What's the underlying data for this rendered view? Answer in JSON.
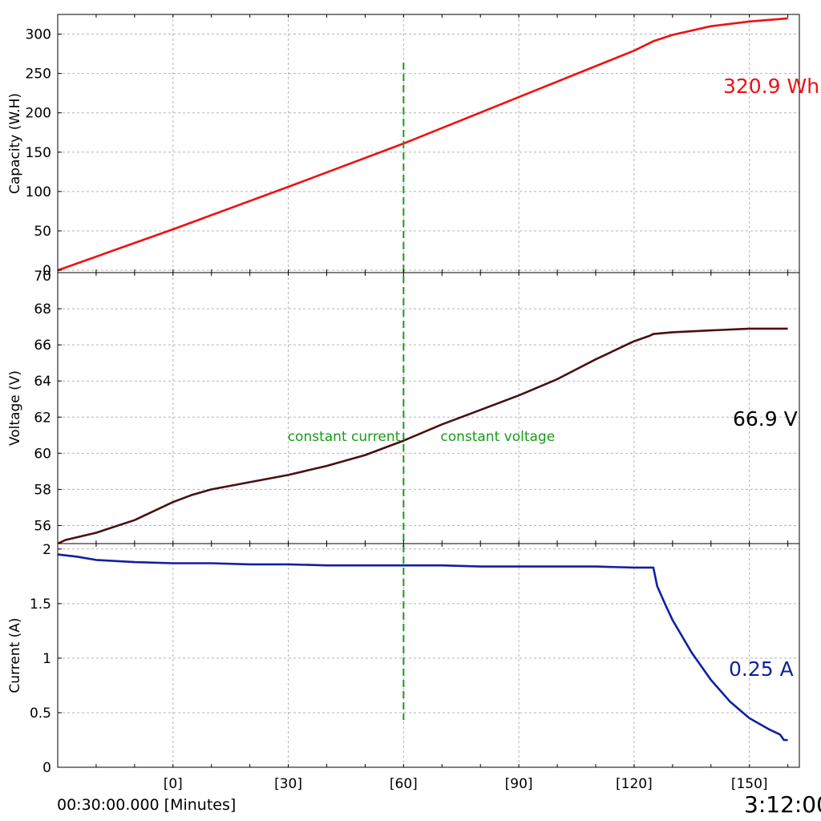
{
  "footer": {
    "time_offset": "00:30:00.000 [Minutes]",
    "clock": "3:12:00"
  },
  "chart_data": [
    {
      "id": "capacity",
      "type": "line",
      "ylabel": "Capacity (W.H)",
      "ylim": [
        -3,
        325
      ],
      "yticks": [
        0,
        50,
        100,
        150,
        200,
        250,
        300
      ],
      "readout": "320.9 Wh",
      "color": "#ee1111",
      "series": [
        {
          "x": [
            -30,
            0,
            30,
            60,
            90,
            120,
            125,
            130,
            140,
            150,
            160
          ],
          "values": [
            0,
            52,
            106,
            161,
            220,
            279,
            291,
            299,
            310,
            316,
            320
          ]
        }
      ]
    },
    {
      "id": "voltage",
      "type": "line",
      "ylabel": "Voltage (V)",
      "ylim": [
        55,
        70
      ],
      "yticks": [
        56,
        58,
        60,
        62,
        64,
        66,
        68
      ],
      "top_tick_partial": "70",
      "readout": "66.9 V",
      "color": "#4a1010",
      "series": [
        {
          "x": [
            -30,
            -28,
            -20,
            -10,
            -2,
            0,
            5,
            10,
            20,
            30,
            40,
            50,
            60,
            70,
            80,
            90,
            100,
            110,
            120,
            124,
            125,
            130,
            140,
            150,
            160
          ],
          "values": [
            55.0,
            55.2,
            55.6,
            56.3,
            57.1,
            57.3,
            57.7,
            58.0,
            58.4,
            58.8,
            59.3,
            59.9,
            60.7,
            61.6,
            62.4,
            63.2,
            64.1,
            65.2,
            66.2,
            66.5,
            66.6,
            66.7,
            66.8,
            66.9,
            66.9
          ]
        }
      ]
    },
    {
      "id": "current",
      "type": "line",
      "ylabel": "Current (A)",
      "ylim": [
        0,
        2.05
      ],
      "yticks": [
        0,
        0.5,
        1,
        1.5,
        2
      ],
      "ytick_labels": [
        "0",
        "0.5",
        "1",
        "1.5",
        "2"
      ],
      "readout": "0.25 A",
      "color": "#1020a0",
      "series": [
        {
          "x": [
            -30,
            -25,
            -20,
            -10,
            0,
            10,
            20,
            30,
            40,
            50,
            60,
            70,
            80,
            90,
            100,
            110,
            120,
            124,
            125,
            126,
            128,
            130,
            135,
            140,
            145,
            150,
            155,
            158,
            159,
            160
          ],
          "values": [
            1.95,
            1.93,
            1.9,
            1.88,
            1.87,
            1.87,
            1.86,
            1.86,
            1.85,
            1.85,
            1.85,
            1.85,
            1.84,
            1.84,
            1.84,
            1.84,
            1.83,
            1.83,
            1.83,
            1.66,
            1.5,
            1.35,
            1.05,
            0.8,
            0.6,
            0.45,
            0.35,
            0.3,
            0.25,
            0.25
          ]
        }
      ]
    },
    {
      "id": "x_axis",
      "xlim": [
        -30,
        163
      ],
      "xticks": [
        0,
        30,
        60,
        90,
        120,
        150
      ],
      "xtick_labels": [
        "[0]",
        "[30]",
        "[60]",
        "[90]",
        "[120]",
        "[150]"
      ],
      "marker": {
        "x": 60,
        "color": "#1a9a1a",
        "label_left": "constant current",
        "label_right": "constant voltage"
      }
    }
  ]
}
